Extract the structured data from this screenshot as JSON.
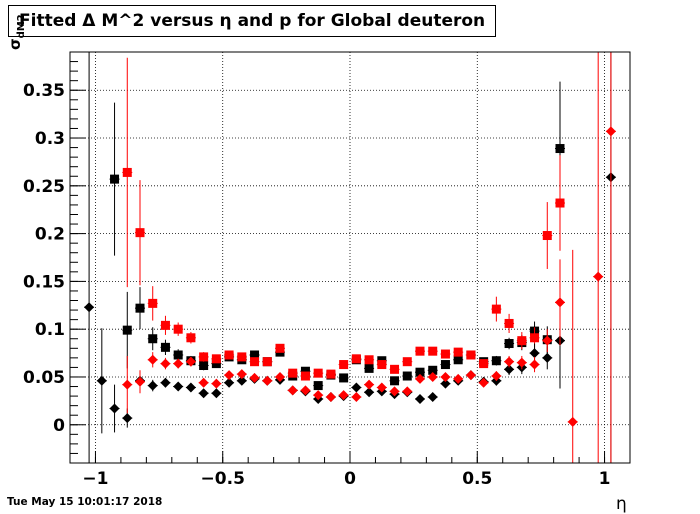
{
  "title": "Fitted Δ M^2 versus η and p for Global deuteron",
  "timestamp": "Tue May 15 10:01:17 2018",
  "chart_data": {
    "type": "scatter",
    "title": "Fitted Δ M^2 versus η and p for Global deuteron",
    "xlabel": "η",
    "ylabel_main": "σ",
    "ylabel_sub": "dM2",
    "xlim": [
      -1.1,
      1.1
    ],
    "ylim": [
      -0.04,
      0.39
    ],
    "grid": true,
    "x_ticks": [
      {
        "v": -1,
        "label": "−1"
      },
      {
        "v": -0.5,
        "label": "−0.5"
      },
      {
        "v": 0,
        "label": "0"
      },
      {
        "v": 0.5,
        "label": "0.5"
      },
      {
        "v": 1,
        "label": "1"
      }
    ],
    "y_ticks": [
      {
        "v": 0,
        "label": "0"
      },
      {
        "v": 0.05,
        "label": "0.05"
      },
      {
        "v": 0.1,
        "label": "0.1"
      },
      {
        "v": 0.15,
        "label": "0.15"
      },
      {
        "v": 0.2,
        "label": "0.2"
      },
      {
        "v": 0.25,
        "label": "0.25"
      },
      {
        "v": 0.3,
        "label": "0.3"
      },
      {
        "v": 0.35,
        "label": "0.35"
      }
    ],
    "series": [
      {
        "color": "#000000",
        "marker": "square",
        "points": [
          [
            -0.925,
            0.257,
            0.08
          ],
          [
            -0.875,
            0.099,
            0.04
          ],
          [
            -0.825,
            0.122,
            0.022
          ],
          [
            -0.775,
            0.09,
            0.012
          ],
          [
            -0.725,
            0.081,
            0.008
          ],
          [
            -0.675,
            0.073,
            0.006
          ],
          [
            -0.625,
            0.067,
            0.005
          ],
          [
            -0.575,
            0.062,
            0.005
          ],
          [
            -0.525,
            0.064,
            0.004
          ],
          [
            -0.475,
            0.071,
            0.004
          ],
          [
            -0.425,
            0.068,
            0.004
          ],
          [
            -0.375,
            0.073,
            0.004
          ],
          [
            -0.325,
            0.066,
            0.004
          ],
          [
            -0.275,
            0.076,
            0.004
          ],
          [
            -0.225,
            0.051,
            0.004
          ],
          [
            -0.175,
            0.056,
            0.004
          ],
          [
            -0.125,
            0.041,
            0.004
          ],
          [
            -0.075,
            0.052,
            0.004
          ],
          [
            -0.025,
            0.049,
            0.004
          ],
          [
            0.025,
            0.068,
            0.004
          ],
          [
            0.075,
            0.059,
            0.004
          ],
          [
            0.125,
            0.067,
            0.004
          ],
          [
            0.175,
            0.046,
            0.004
          ],
          [
            0.225,
            0.051,
            0.004
          ],
          [
            0.275,
            0.055,
            0.004
          ],
          [
            0.325,
            0.057,
            0.004
          ],
          [
            0.375,
            0.063,
            0.004
          ],
          [
            0.425,
            0.068,
            0.004
          ],
          [
            0.475,
            0.073,
            0.004
          ],
          [
            0.525,
            0.066,
            0.004
          ],
          [
            0.575,
            0.067,
            0.005
          ],
          [
            0.625,
            0.085,
            0.006
          ],
          [
            0.675,
            0.086,
            0.008
          ],
          [
            0.725,
            0.098,
            0.01
          ],
          [
            0.775,
            0.089,
            0.014
          ],
          [
            0.825,
            0.289,
            0.07
          ]
        ]
      },
      {
        "color": "#ff0000",
        "marker": "square",
        "points": [
          [
            -0.875,
            0.264,
            0.12
          ],
          [
            -0.825,
            0.201,
            0.055
          ],
          [
            -0.775,
            0.127,
            0.018
          ],
          [
            -0.725,
            0.104,
            0.01
          ],
          [
            -0.675,
            0.1,
            0.007
          ],
          [
            -0.625,
            0.091,
            0.006
          ],
          [
            -0.575,
            0.071,
            0.005
          ],
          [
            -0.525,
            0.069,
            0.004
          ],
          [
            -0.475,
            0.073,
            0.004
          ],
          [
            -0.425,
            0.071,
            0.004
          ],
          [
            -0.375,
            0.066,
            0.004
          ],
          [
            -0.325,
            0.066,
            0.004
          ],
          [
            -0.275,
            0.08,
            0.004
          ],
          [
            -0.225,
            0.054,
            0.004
          ],
          [
            -0.175,
            0.051,
            0.004
          ],
          [
            -0.125,
            0.054,
            0.004
          ],
          [
            -0.075,
            0.053,
            0.004
          ],
          [
            -0.025,
            0.063,
            0.004
          ],
          [
            0.025,
            0.069,
            0.004
          ],
          [
            0.075,
            0.068,
            0.004
          ],
          [
            0.125,
            0.063,
            0.004
          ],
          [
            0.175,
            0.058,
            0.004
          ],
          [
            0.225,
            0.066,
            0.004
          ],
          [
            0.275,
            0.077,
            0.004
          ],
          [
            0.325,
            0.077,
            0.004
          ],
          [
            0.375,
            0.074,
            0.004
          ],
          [
            0.425,
            0.076,
            0.004
          ],
          [
            0.475,
            0.073,
            0.004
          ],
          [
            0.525,
            0.064,
            0.004
          ],
          [
            0.575,
            0.121,
            0.013
          ],
          [
            0.625,
            0.106,
            0.01
          ],
          [
            0.675,
            0.088,
            0.009
          ],
          [
            0.725,
            0.091,
            0.011
          ],
          [
            0.775,
            0.198,
            0.035
          ],
          [
            0.825,
            0.232,
            0.05
          ]
        ]
      },
      {
        "color": "#000000",
        "marker": "diamond",
        "points": [
          [
            -1.025,
            0.123,
            0.4
          ],
          [
            -0.975,
            0.046,
            0.055
          ],
          [
            -0.925,
            0.017,
            0.025
          ],
          [
            -0.875,
            0.007,
            0.01
          ],
          [
            -0.825,
            0.046,
            0.008
          ],
          [
            -0.775,
            0.041,
            0.006
          ],
          [
            -0.725,
            0.044,
            0.005
          ],
          [
            -0.675,
            0.04,
            0.004
          ],
          [
            -0.625,
            0.039,
            0.004
          ],
          [
            -0.575,
            0.033,
            0.004
          ],
          [
            -0.525,
            0.033,
            0.004
          ],
          [
            -0.475,
            0.044,
            0.004
          ],
          [
            -0.425,
            0.046,
            0.004
          ],
          [
            -0.375,
            0.048,
            0.004
          ],
          [
            -0.325,
            0.046,
            0.004
          ],
          [
            -0.275,
            0.047,
            0.004
          ],
          [
            -0.225,
            0.036,
            0.004
          ],
          [
            -0.175,
            0.035,
            0.004
          ],
          [
            -0.125,
            0.027,
            0.004
          ],
          [
            -0.075,
            0.029,
            0.004
          ],
          [
            -0.025,
            0.03,
            0.004
          ],
          [
            0.025,
            0.039,
            0.004
          ],
          [
            0.075,
            0.034,
            0.004
          ],
          [
            0.125,
            0.035,
            0.004
          ],
          [
            0.175,
            0.032,
            0.004
          ],
          [
            0.225,
            0.034,
            0.004
          ],
          [
            0.275,
            0.027,
            0.004
          ],
          [
            0.325,
            0.029,
            0.004
          ],
          [
            0.375,
            0.043,
            0.004
          ],
          [
            0.425,
            0.046,
            0.004
          ],
          [
            0.475,
            0.052,
            0.004
          ],
          [
            0.525,
            0.045,
            0.004
          ],
          [
            0.575,
            0.046,
            0.005
          ],
          [
            0.625,
            0.058,
            0.006
          ],
          [
            0.675,
            0.06,
            0.007
          ],
          [
            0.725,
            0.075,
            0.01
          ],
          [
            0.775,
            0.07,
            0.012
          ],
          [
            0.825,
            0.088,
            0.05
          ],
          [
            1.025,
            0.259,
            0.5
          ]
        ]
      },
      {
        "color": "#ff0000",
        "marker": "diamond",
        "points": [
          [
            -0.875,
            0.042,
            0.03
          ],
          [
            -0.825,
            0.045,
            0.012
          ],
          [
            -0.775,
            0.068,
            0.008
          ],
          [
            -0.725,
            0.064,
            0.006
          ],
          [
            -0.675,
            0.064,
            0.005
          ],
          [
            -0.625,
            0.066,
            0.005
          ],
          [
            -0.575,
            0.044,
            0.004
          ],
          [
            -0.525,
            0.043,
            0.004
          ],
          [
            -0.475,
            0.052,
            0.004
          ],
          [
            -0.425,
            0.053,
            0.004
          ],
          [
            -0.375,
            0.049,
            0.004
          ],
          [
            -0.325,
            0.046,
            0.004
          ],
          [
            -0.275,
            0.05,
            0.004
          ],
          [
            -0.225,
            0.036,
            0.004
          ],
          [
            -0.175,
            0.036,
            0.004
          ],
          [
            -0.125,
            0.031,
            0.004
          ],
          [
            -0.075,
            0.029,
            0.004
          ],
          [
            -0.025,
            0.031,
            0.004
          ],
          [
            0.025,
            0.029,
            0.004
          ],
          [
            0.075,
            0.042,
            0.004
          ],
          [
            0.125,
            0.039,
            0.004
          ],
          [
            0.175,
            0.035,
            0.004
          ],
          [
            0.225,
            0.035,
            0.004
          ],
          [
            0.275,
            0.048,
            0.004
          ],
          [
            0.325,
            0.05,
            0.004
          ],
          [
            0.375,
            0.05,
            0.004
          ],
          [
            0.425,
            0.048,
            0.004
          ],
          [
            0.475,
            0.052,
            0.004
          ],
          [
            0.525,
            0.044,
            0.004
          ],
          [
            0.575,
            0.051,
            0.005
          ],
          [
            0.625,
            0.066,
            0.006
          ],
          [
            0.675,
            0.065,
            0.007
          ],
          [
            0.725,
            0.063,
            0.008
          ],
          [
            0.775,
            0.088,
            0.012
          ],
          [
            0.825,
            0.128,
            0.045
          ],
          [
            0.875,
            0.003,
            0.18
          ],
          [
            0.975,
            0.155,
            0.6
          ],
          [
            1.025,
            0.307,
            0.6
          ]
        ]
      }
    ]
  }
}
